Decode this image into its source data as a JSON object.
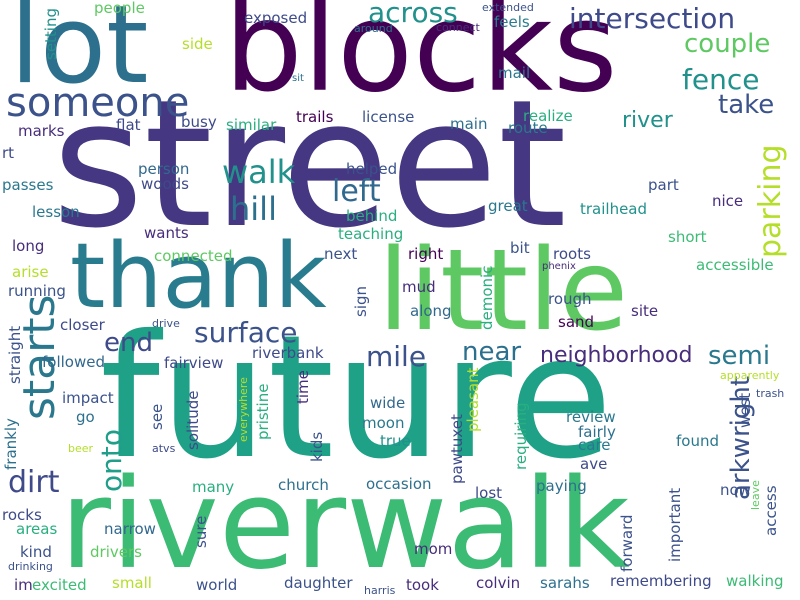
{
  "words": {
    "street": "street",
    "future": "future",
    "blocks": "blocks",
    "riverwalk": "riverwalk",
    "little": "little",
    "lot": "lot",
    "thank": "thank",
    "someone": "someone",
    "starts": "starts",
    "intersection": "intersection",
    "across": "across",
    "couple": "couple",
    "fence": "fence",
    "take": "take",
    "walk": "walk",
    "hill": "hill",
    "left": "left",
    "parking": "parking",
    "arkwright": "arkwright",
    "surface": "surface",
    "end": "end",
    "dirt": "dirt",
    "onto": "onto",
    "mile": "mile",
    "near": "near",
    "semi": "semi",
    "neighborhood": "neighborhood",
    "river": "river",
    "exposed": "exposed",
    "people": "people",
    "setting": "setting",
    "extended": "extended",
    "around": "around",
    "connect": "connect",
    "feels": "feels",
    "mail": "mail",
    "side": "side",
    "sit": "sit",
    "busy": "busy",
    "flat": "flat",
    "similar": "similar",
    "trails": "trails",
    "license": "license",
    "realize": "realize",
    "main": "main",
    "route": "route",
    "marks": "marks",
    "rt": "rt",
    "person": "person",
    "woods": "woods",
    "helped": "helped",
    "part": "part",
    "passes": "passes",
    "lesson": "lesson",
    "behind": "behind",
    "great": "great",
    "trailhead": "trailhead",
    "nice": "nice",
    "wants": "wants",
    "teaching": "teaching",
    "short": "short",
    "long": "long",
    "connected": "connected",
    "next": "next",
    "right": "right",
    "bit": "bit",
    "roots": "roots",
    "phenix": "phenix",
    "accessible": "accessible",
    "arise": "arise",
    "running": "running",
    "sign": "sign",
    "mud": "mud",
    "demonic": "demonic",
    "rough": "rough",
    "closer": "closer",
    "drive": "drive",
    "along": "along",
    "site": "site",
    "sand": "sand",
    "straight": "straight",
    "followed": "followed",
    "fairview": "fairview",
    "riverbank": "riverbank",
    "everywhere": "everywhere",
    "pristine": "pristine",
    "time": "time",
    "apparently": "apparently",
    "trash": "trash",
    "impact": "impact",
    "solitude": "solitude",
    "wide": "wide",
    "pleasant": "pleasant",
    "review": "review",
    "west": "west",
    "go": "go",
    "see": "see",
    "moon": "moon",
    "fairly": "fairly",
    "frankly": "frankly",
    "kids": "kids",
    "requiring": "requiring",
    "found": "found",
    "beer": "beer",
    "atvs": "atvs",
    "true": "true",
    "pawtuxet": "pawtuxet",
    "care": "care",
    "ave": "ave",
    "many": "many",
    "church": "church",
    "occasion": "occasion",
    "paying": "paying",
    "lost": "lost",
    "now": "now",
    "leave": "leave",
    "rocks": "rocks",
    "areas": "areas",
    "narrow": "narrow",
    "sure": "sure",
    "important": "important",
    "access": "access",
    "kind": "kind",
    "drivers": "drivers",
    "mom": "mom",
    "forward": "forward",
    "drinking": "drinking",
    "im": "im",
    "excited": "excited",
    "small": "small",
    "world": "world",
    "daughter": "daughter",
    "harris": "harris",
    "took": "took",
    "colvin": "colvin",
    "sarahs": "sarahs",
    "remembering": "remembering",
    "walking": "walking"
  }
}
